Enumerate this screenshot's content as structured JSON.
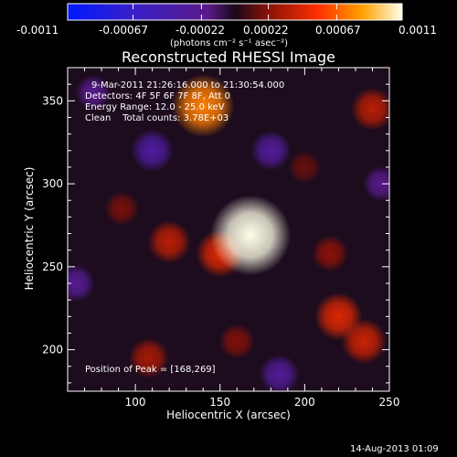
{
  "colorbar": {
    "tick_labels": [
      "-0.0011",
      "-0.00067",
      "-0.00022",
      "0.00022",
      "0.00067",
      "0.0011"
    ],
    "units_label": "(photons cm⁻² s⁻¹ asec⁻²)",
    "min": -0.0011,
    "max": 0.0011
  },
  "chart_data": {
    "type": "heatmap",
    "title": "Reconstructed RHESSI Image",
    "xlabel": "Heliocentric X (arcsec)",
    "ylabel": "Heliocentric Y (arcsec)",
    "xlim": [
      60,
      250
    ],
    "ylim": [
      175,
      370
    ],
    "x_ticks": [
      100,
      150,
      200,
      250
    ],
    "y_ticks": [
      200,
      250,
      300,
      350
    ],
    "x_tick_labels": [
      "100",
      "150",
      "200",
      "250"
    ],
    "y_tick_labels": [
      "200",
      "250",
      "300",
      "350"
    ],
    "sources": [
      {
        "x": 168,
        "y": 269,
        "value": 0.0011
      },
      {
        "x": 140,
        "y": 347,
        "value": 0.00075
      },
      {
        "x": 150,
        "y": 258,
        "value": 0.00045
      },
      {
        "x": 120,
        "y": 265,
        "value": 0.00035
      },
      {
        "x": 220,
        "y": 220,
        "value": 0.00045
      },
      {
        "x": 235,
        "y": 205,
        "value": 0.0004
      },
      {
        "x": 240,
        "y": 345,
        "value": 0.00035
      },
      {
        "x": 108,
        "y": 195,
        "value": 0.0003
      },
      {
        "x": 215,
        "y": 258,
        "value": 0.00022
      },
      {
        "x": 92,
        "y": 285,
        "value": 0.00018
      },
      {
        "x": 160,
        "y": 205,
        "value": 0.0002
      },
      {
        "x": 200,
        "y": 310,
        "value": 0.00015
      },
      {
        "x": 75,
        "y": 355,
        "value": -0.0002
      },
      {
        "x": 110,
        "y": 320,
        "value": -0.00035
      },
      {
        "x": 180,
        "y": 320,
        "value": -0.0003
      },
      {
        "x": 65,
        "y": 240,
        "value": -0.00025
      },
      {
        "x": 185,
        "y": 185,
        "value": -0.0003
      },
      {
        "x": 245,
        "y": 300,
        "value": -0.0002
      }
    ],
    "annotations": {
      "time_range": "9-Mar-2011 21:26:16.000 to 21:30:54.000",
      "detectors": "Detectors: 4F 5F 6F 7F 8F, Att 0",
      "energy": "Energy Range: 12.0 - 25.0 keV",
      "clean": "Clean    Total counts: 3.78E+03",
      "peak": "Position of Peak = [168,269]"
    }
  },
  "footer": {
    "date": "14-Aug-2013 01:09"
  }
}
